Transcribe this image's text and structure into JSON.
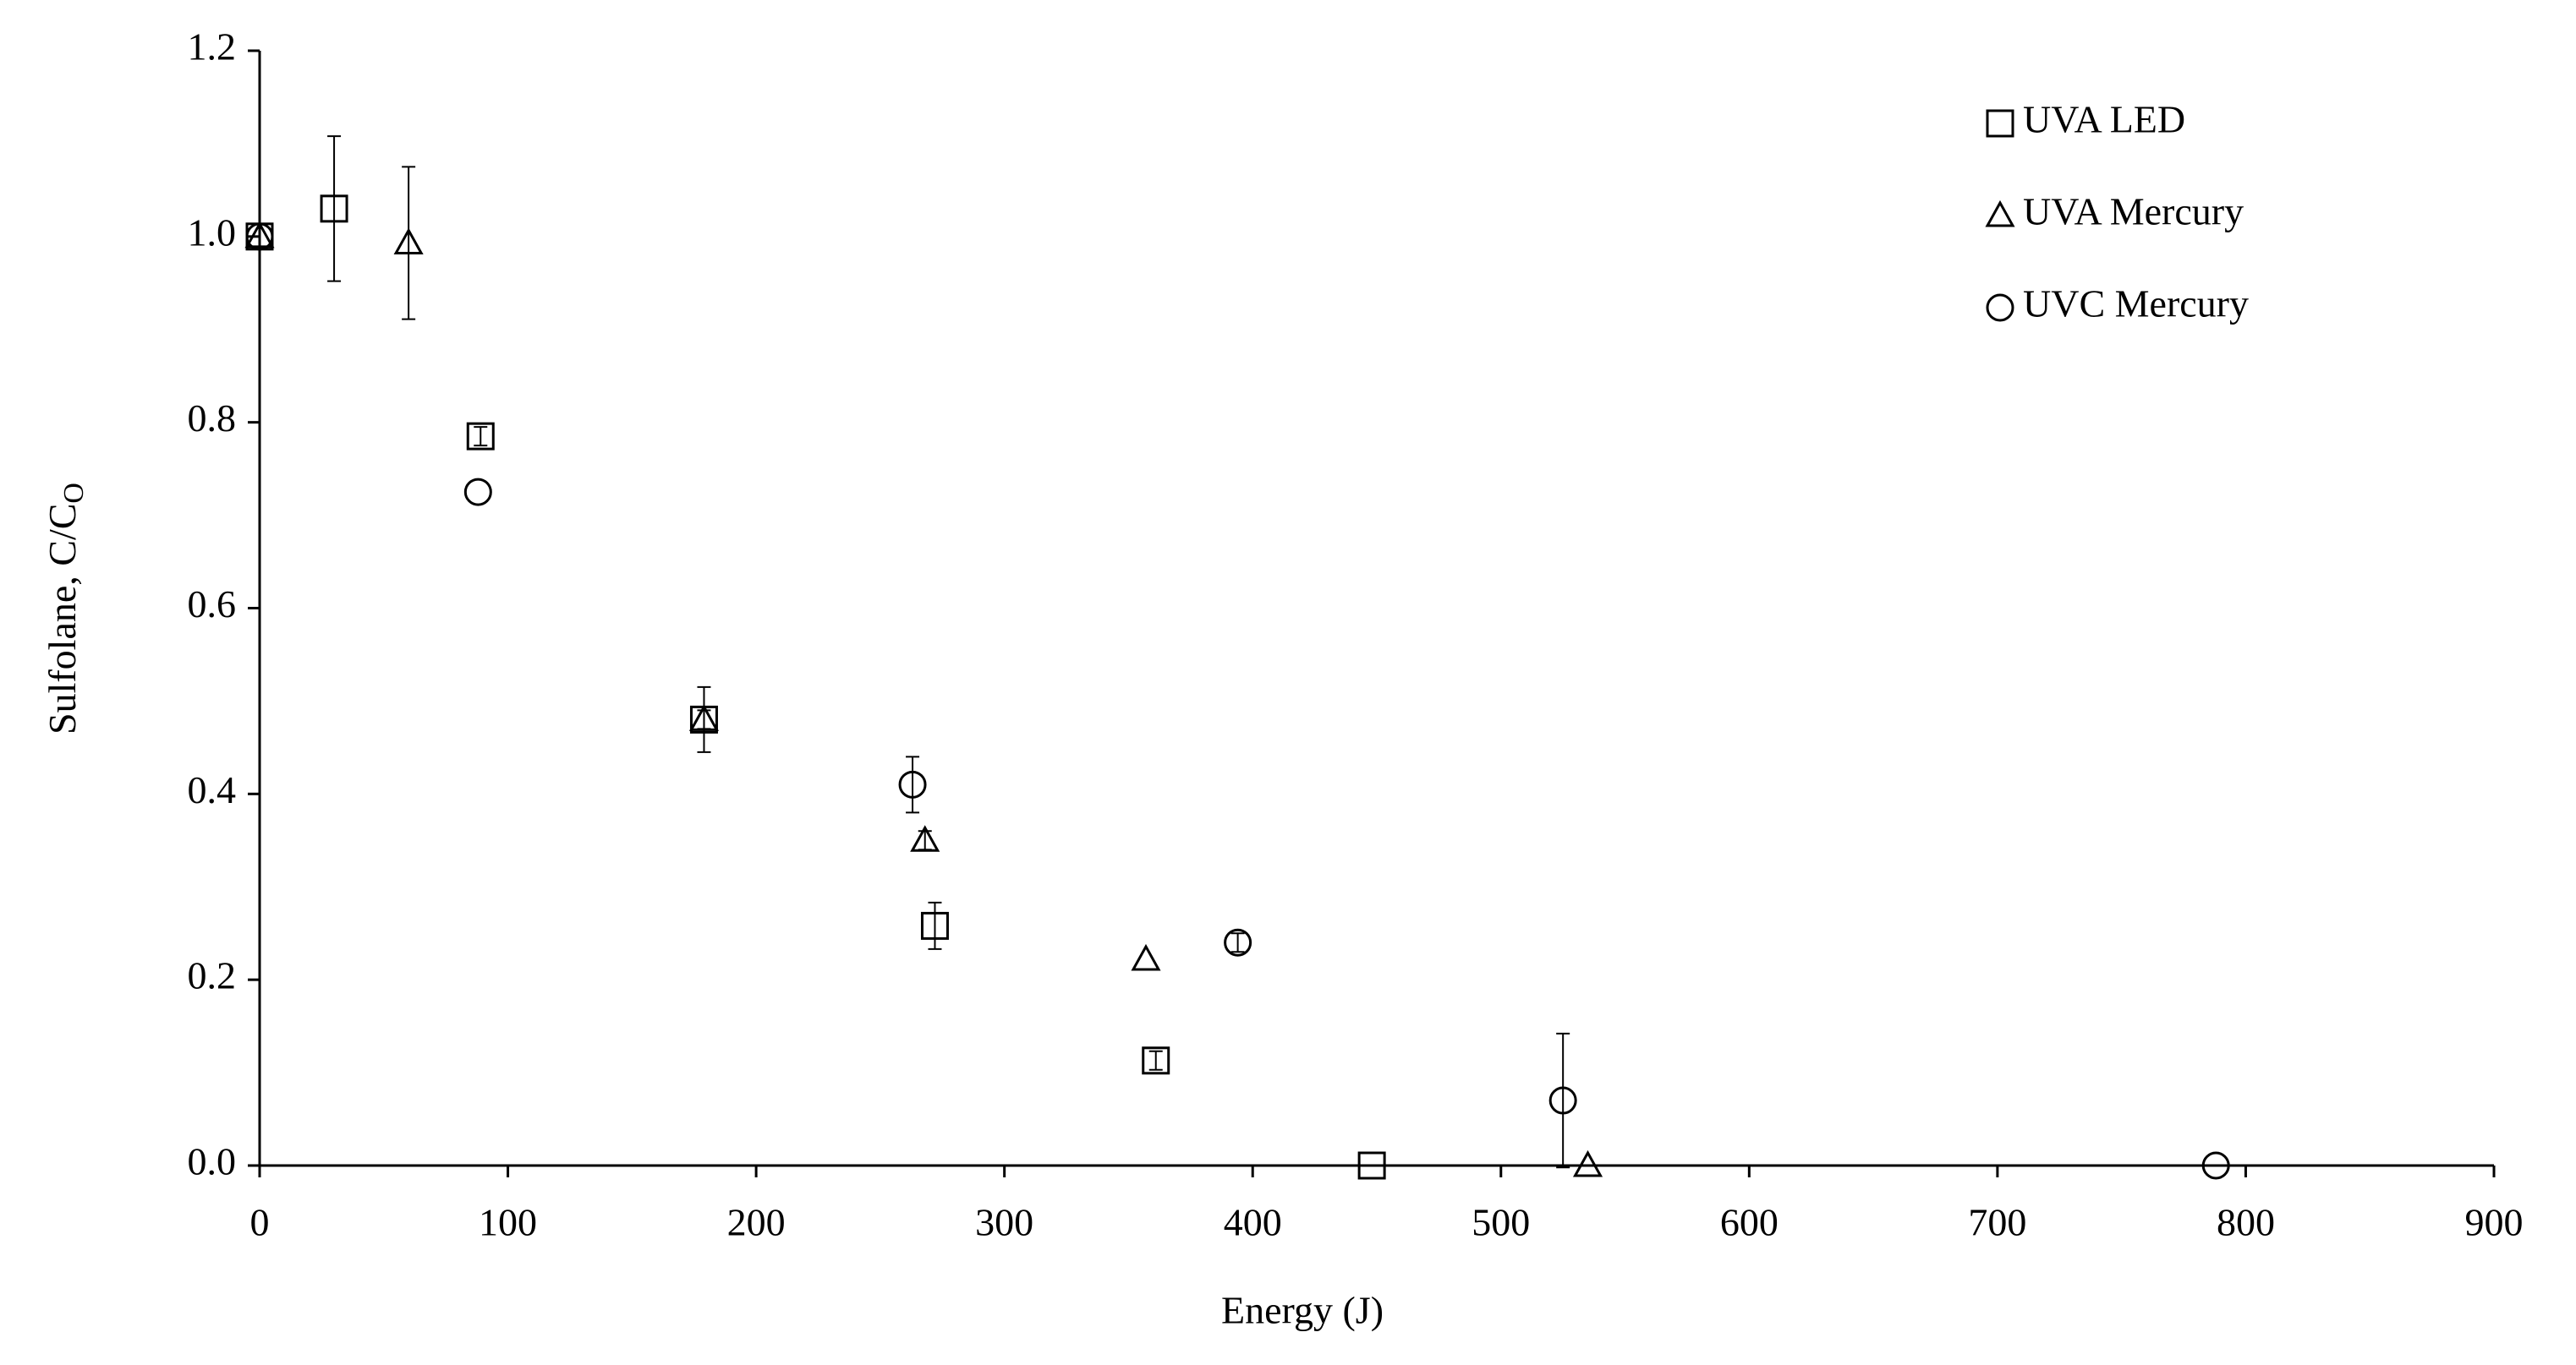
{
  "chart_data": {
    "type": "scatter",
    "xlabel": "Energy  (J)",
    "ylabel": "Sulfolane,  C/C",
    "ylabel_subscript": "O",
    "xlim": [
      0,
      900
    ],
    "xticks": [
      0,
      100,
      200,
      300,
      400,
      500,
      600,
      700,
      800,
      900
    ],
    "ylim": [
      0,
      1.2
    ],
    "yticks": [
      {
        "value": 0,
        "label": "0.0"
      },
      {
        "value": 0.2,
        "label": "0.2"
      },
      {
        "value": 0.4,
        "label": "0.4"
      },
      {
        "value": 0.6,
        "label": "0.6"
      },
      {
        "value": 0.8,
        "label": "0.8"
      },
      {
        "value": 1.0,
        "label": "1.0"
      },
      {
        "value": 1.2,
        "label": "1.2"
      }
    ],
    "grid": false,
    "legend": "upper right",
    "series": [
      {
        "name": "UVA LED",
        "color": "#000000",
        "marker": "square",
        "x": [
          0,
          30,
          89,
          179,
          272,
          361,
          448
        ],
        "values": [
          1.0,
          1.03,
          0.785,
          0.48,
          0.258,
          0.113,
          0.0
        ],
        "errors": [
          null,
          0.078,
          0.01,
          0.035,
          0.025,
          0.01,
          null
        ]
      },
      {
        "name": "UVA Mercury",
        "color": "#000000",
        "marker": "triangle",
        "x": [
          0,
          60,
          179,
          268,
          357,
          535
        ],
        "values": [
          1.0,
          0.993,
          0.48,
          0.35,
          0.222,
          0.0
        ],
        "errors": [
          null,
          0.082,
          0.01,
          0.01,
          null,
          null
        ]
      },
      {
        "name": "UVC Mercury",
        "color": "#000000",
        "marker": "circle",
        "x": [
          0,
          88,
          263,
          394,
          525,
          788
        ],
        "values": [
          1.0,
          0.725,
          0.41,
          0.24,
          0.07,
          0.0
        ],
        "errors": [
          null,
          null,
          0.03,
          0.01,
          0.072,
          null
        ]
      }
    ]
  }
}
